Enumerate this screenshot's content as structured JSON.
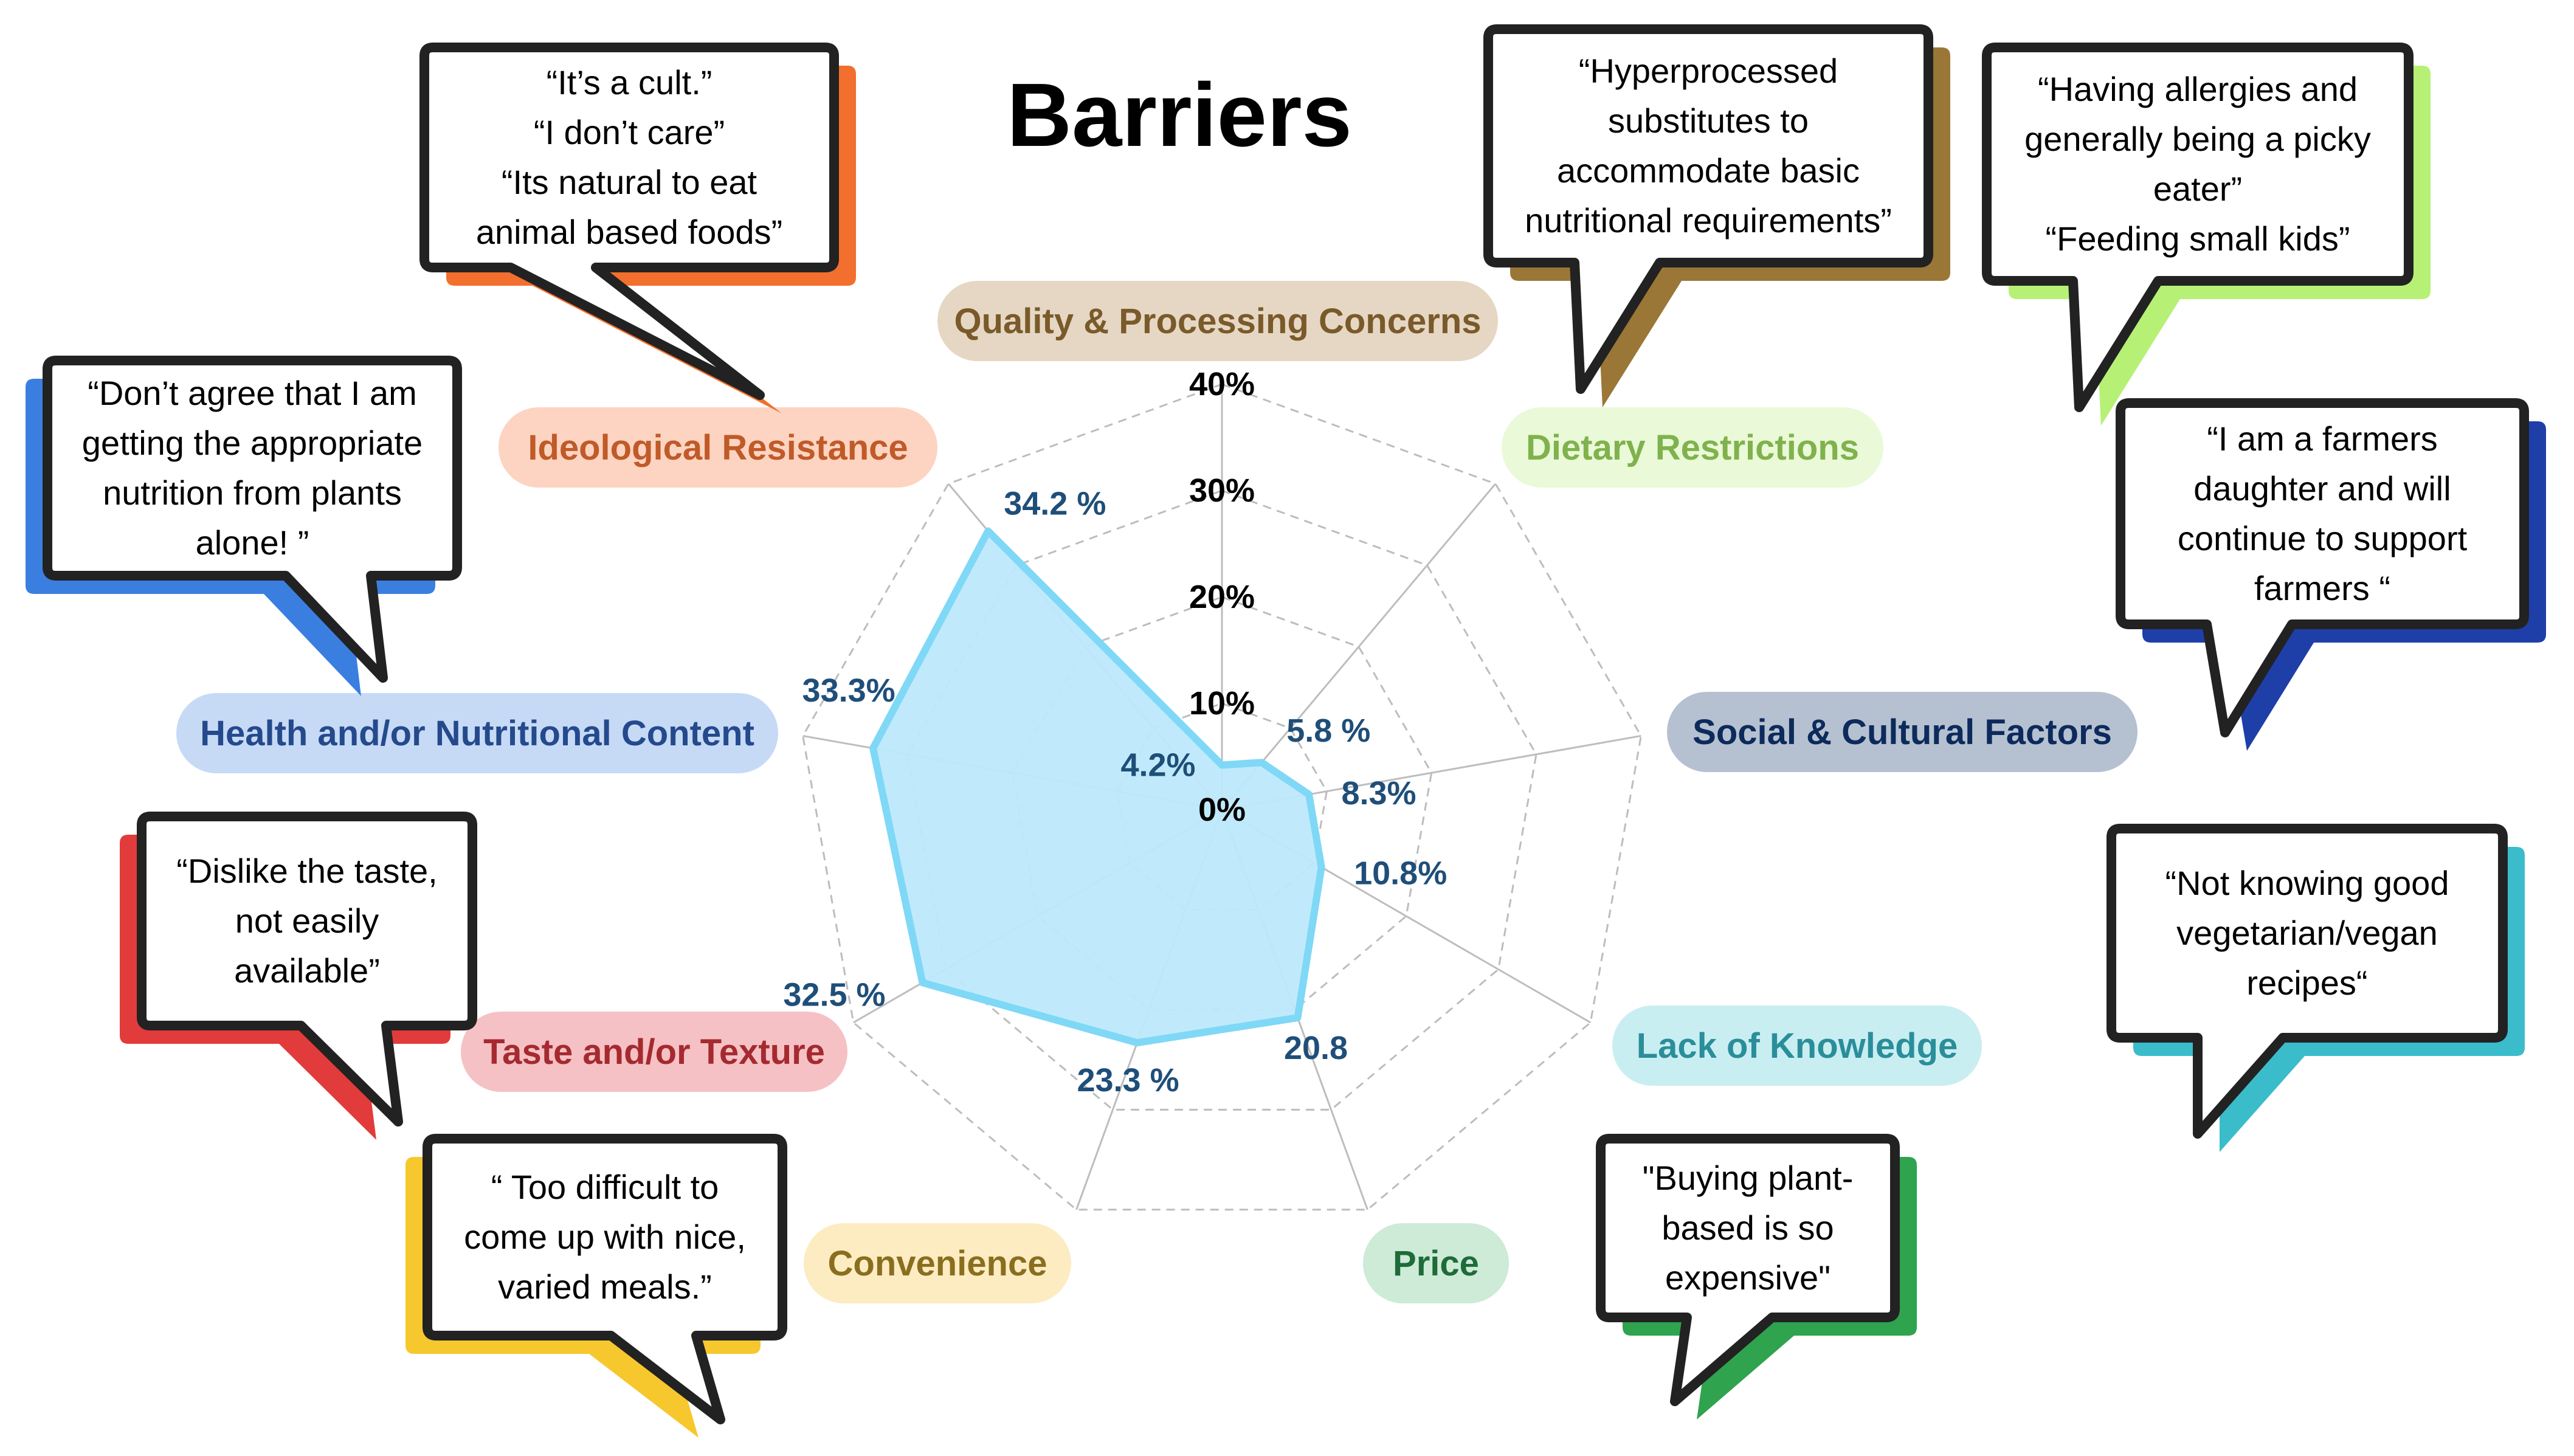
{
  "title": "Barriers",
  "chart_data": {
    "type": "radar",
    "title": "Barriers",
    "axis_ticks": [
      "0%",
      "10%",
      "20%",
      "30%",
      "40%"
    ],
    "rmax": 40,
    "categories": [
      "Quality & Processing Concerns",
      "Dietary Restrictions",
      "Social & Cultural Factors",
      "Lack of Knowledge",
      "Price",
      "Convenience",
      "Taste and/or Texture",
      "Health and/or Nutritional Content",
      "Ideological Resistance"
    ],
    "values": [
      4.2,
      5.8,
      8.3,
      10.8,
      20.8,
      23.3,
      32.5,
      33.3,
      34.2
    ],
    "value_labels": [
      "4.2%",
      "5.8 %",
      "8.3%",
      "10.8%",
      "20.8",
      "23.3 %",
      "32.5 %",
      "33.3%",
      "34.2 %"
    ],
    "colors": {
      "fill": "#bde9fb",
      "stroke": "#7fd8f6",
      "value_label": "#1f4e79",
      "grid": "#bdbdbd"
    }
  },
  "categories_style": [
    {
      "name": "Quality & Processing Concerns",
      "bg": "#e5d7c3",
      "fg": "#7a5a2a"
    },
    {
      "name": "Dietary Restrictions",
      "bg": "#eaf9d8",
      "fg": "#7fb24c"
    },
    {
      "name": "Social & Cultural Factors",
      "bg": "#b5c1d0",
      "fg": "#0d2a5c"
    },
    {
      "name": "Lack of Knowledge",
      "bg": "#c9eef1",
      "fg": "#2a8e9a"
    },
    {
      "name": "Price",
      "bg": "#cdebd6",
      "fg": "#1f6b3a"
    },
    {
      "name": "Convenience",
      "bg": "#fdecc2",
      "fg": "#8a6e1f"
    },
    {
      "name": "Taste and/or Texture",
      "bg": "#f5c1c4",
      "fg": "#a52a30"
    },
    {
      "name": "Health and/or Nutritional Content",
      "bg": "#c6daf6",
      "fg": "#244a8c"
    },
    {
      "name": "Ideological Resistance",
      "bg": "#fcd4c1",
      "fg": "#c05a28"
    }
  ],
  "quotes": [
    {
      "id": "ideological",
      "color": "#f26f2e",
      "lines": [
        "“It’s a cult.”",
        "“I don’t care”",
        "“Its natural to eat",
        "animal based foods”"
      ]
    },
    {
      "id": "quality",
      "color": "#9a7736",
      "lines": [
        "“Hyperprocessed",
        "substitutes to",
        "accommodate basic",
        "nutritional requirements”"
      ]
    },
    {
      "id": "dietary",
      "color": "#b6f075",
      "lines": [
        "“Having allergies and",
        "generally being a picky",
        "eater”",
        "“Feeding small kids”"
      ]
    },
    {
      "id": "health",
      "color": "#3a7fe0",
      "lines": [
        "“Don’t agree that I am",
        "getting the appropriate",
        "nutrition from plants",
        "alone! ”"
      ]
    },
    {
      "id": "social",
      "color": "#1e3fa8",
      "lines": [
        "“I am  a farmers",
        "daughter and will",
        "continue to support",
        "farmers “"
      ]
    },
    {
      "id": "taste",
      "color": "#e23b3b",
      "lines": [
        "“Dislike the taste,",
        "not easily",
        "available”"
      ]
    },
    {
      "id": "knowledge",
      "color": "#3bbccb",
      "lines": [
        "“Not knowing good",
        "vegetarian/vegan",
        "recipes“"
      ]
    },
    {
      "id": "convenience",
      "color": "#f7c72e",
      "lines": [
        "“ Too difficult to",
        "come up with nice,",
        "varied meals.”"
      ]
    },
    {
      "id": "price",
      "color": "#2fa34e",
      "lines": [
        "\"Buying plant-",
        "based is so",
        "expensive\""
      ]
    }
  ]
}
